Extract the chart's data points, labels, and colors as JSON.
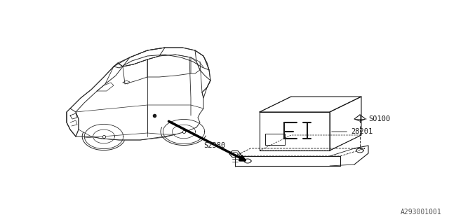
{
  "bg_color": "#ffffff",
  "line_color": "#1a1a1a",
  "thin_color": "#555555",
  "diagram_id": "A293001001",
  "fig_width": 6.4,
  "fig_height": 3.2,
  "dpi": 100
}
